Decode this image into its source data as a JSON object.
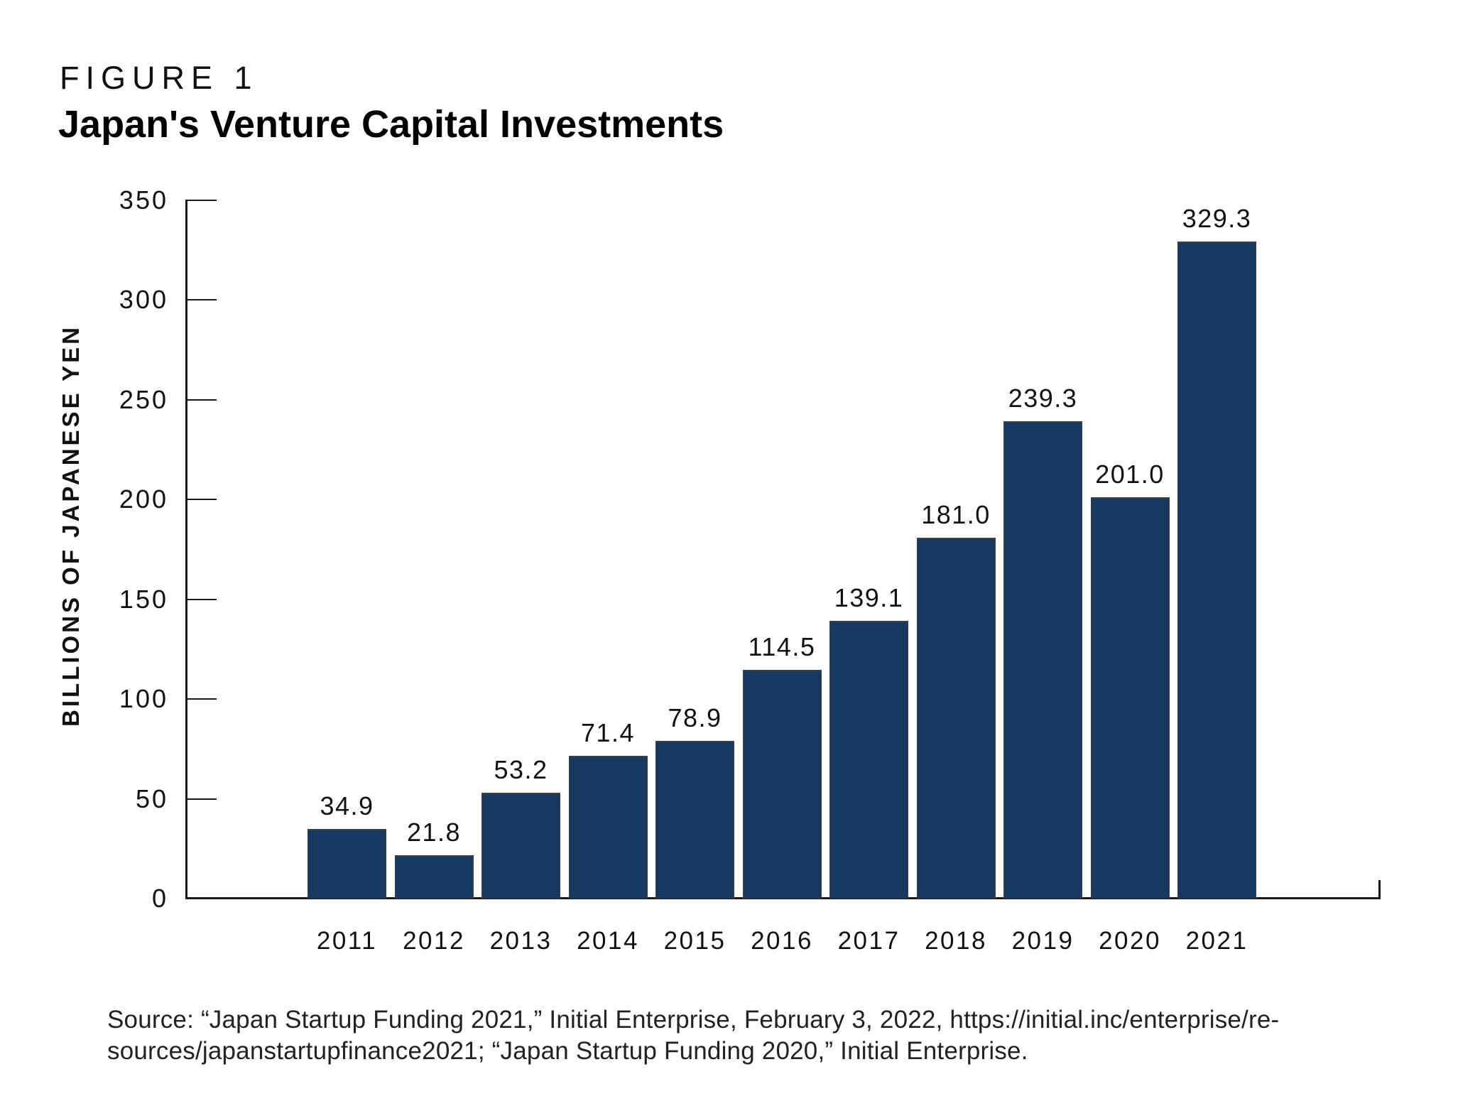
{
  "header": {
    "figure_label": "FIGURE 1",
    "title": "Japan's Venture Capital Investments"
  },
  "chart_data": {
    "type": "bar",
    "title": "Japan's Venture Capital Investments",
    "categories": [
      "2011",
      "2012",
      "2013",
      "2014",
      "2015",
      "2016",
      "2017",
      "2018",
      "2019",
      "2020",
      "2021"
    ],
    "values": [
      34.9,
      21.8,
      53.2,
      71.4,
      78.9,
      114.5,
      139.1,
      181.0,
      239.3,
      201.0,
      329.3
    ],
    "value_labels": [
      "34.9",
      "21.8",
      "53.2",
      "71.4",
      "78.9",
      "114.5",
      "139.1",
      "181.0",
      "239.3",
      "201.0",
      "329.3"
    ],
    "xlabel": "",
    "ylabel": "BILLIONS OF JAPANESE YEN",
    "ylim": [
      0,
      350
    ],
    "yticks": [
      0,
      50,
      100,
      150,
      200,
      250,
      300,
      350
    ],
    "grid": false,
    "legend": "none",
    "bar_color": "#143a62",
    "bar_edge_color": "#3f3f3f",
    "axis_color": "#1a1a1a",
    "text_color": "#111111"
  },
  "source": {
    "line1": "Source: “Japan Startup Funding 2021,” Initial Enterprise, February 3, 2022, https://initial.inc/enterprise/re-",
    "line2": "sources/japanstartupfinance2021; “Japan Startup Funding 2020,” Initial Enterprise."
  }
}
